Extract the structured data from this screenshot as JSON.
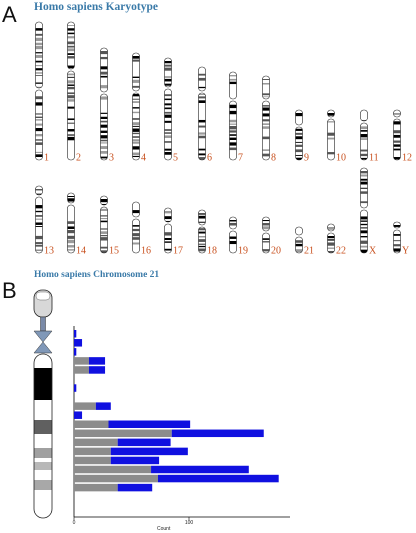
{
  "panel_a": {
    "letter": "A",
    "title": "Homo sapiens Karyotype",
    "chromosomes": [
      "1",
      "2",
      "3",
      "4",
      "5",
      "6",
      "7",
      "8",
      "9",
      "10",
      "11",
      "12",
      "13",
      "14",
      "15",
      "16",
      "17",
      "18",
      "19",
      "20",
      "21",
      "22",
      "X",
      "Y"
    ]
  },
  "panel_b": {
    "letter": "B",
    "title": "Homo sapiens Chromosome 21",
    "chart_data": {
      "type": "bar",
      "orientation": "horizontal",
      "stacked": true,
      "xlabel": "Count",
      "xticks": [
        "0",
        "100"
      ],
      "xlim": [
        0,
        180
      ],
      "colors": {
        "gray": "#8c8c8c",
        "blue": "#1010e0"
      },
      "rows": [
        {
          "gray": 0,
          "blue": 2
        },
        {
          "gray": 0,
          "blue": 7
        },
        {
          "gray": 0,
          "blue": 2
        },
        {
          "gray": 13,
          "blue": 14
        },
        {
          "gray": 13,
          "blue": 14
        },
        {
          "gray": 0,
          "blue": 0
        },
        {
          "gray": 0,
          "blue": 2
        },
        {
          "gray": 0,
          "blue": 0
        },
        {
          "gray": 19,
          "blue": 13
        },
        {
          "gray": 0,
          "blue": 7
        },
        {
          "gray": 30,
          "blue": 71
        },
        {
          "gray": 85,
          "blue": 80
        },
        {
          "gray": 38,
          "blue": 46
        },
        {
          "gray": 32,
          "blue": 67
        },
        {
          "gray": 32,
          "blue": 42
        },
        {
          "gray": 67,
          "blue": 85
        },
        {
          "gray": 73,
          "blue": 105
        },
        {
          "gray": 38,
          "blue": 30
        }
      ]
    }
  }
}
